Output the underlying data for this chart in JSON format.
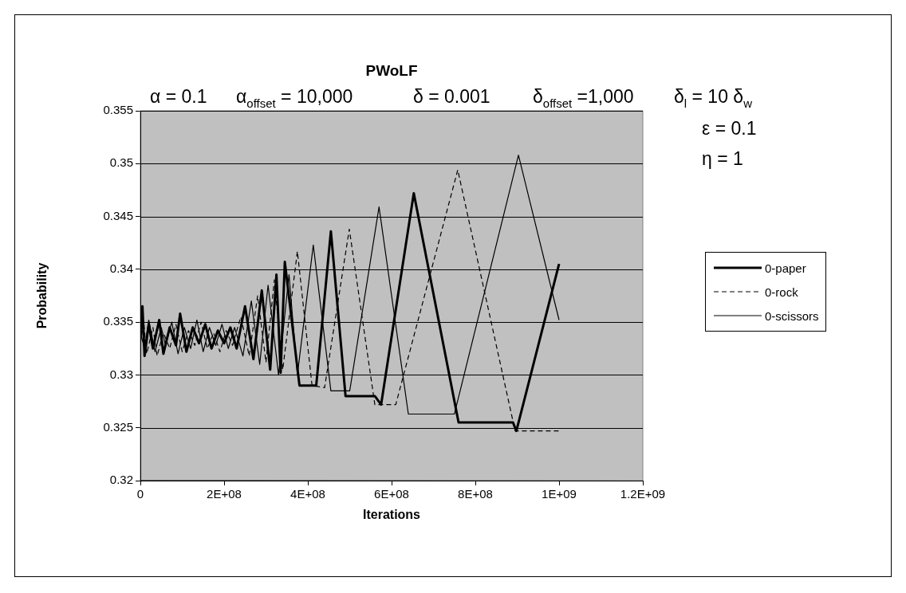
{
  "chart_data": {
    "type": "line",
    "title": "PWoLF",
    "xlabel": "Iterations",
    "ylabel": "Probability",
    "annotations": [
      "α = 0.1",
      "α$_{offset}$ = 10,000",
      "δ = 0.001",
      "δ$_{offset}$ =1,000",
      "δ$_{l}$ = 10 δ$_{w}$",
      "ε = 0.1",
      "η = 1"
    ],
    "xlim": [
      0,
      1200000000.0
    ],
    "xticks": [
      0,
      {
        "value": 200000000.0,
        "label": "2E+08"
      },
      {
        "value": 400000000.0,
        "label": "4E+08"
      },
      {
        "value": 600000000.0,
        "label": "6E+08"
      },
      {
        "value": 800000000.0,
        "label": "8E+08"
      },
      {
        "value": 1000000000.0,
        "label": "1E+09"
      },
      {
        "value": 1200000000.0,
        "label": "1.2E+09"
      }
    ],
    "ylim": [
      0.32,
      0.355
    ],
    "yticks": [
      0.32,
      0.325,
      0.33,
      0.335,
      0.34,
      0.345,
      0.35,
      0.355
    ],
    "grid": "y",
    "legend": "right",
    "marker": "none",
    "series": [
      {
        "name": "0-paper",
        "color": "#000000",
        "line_style": "solid",
        "x": [
          0,
          5000000.0,
          10000000.0,
          20000000.0,
          30000000.0,
          45000000.0,
          55000000.0,
          70000000.0,
          85000000.0,
          95000000.0,
          110000000.0,
          125000000.0,
          140000000.0,
          155000000.0,
          170000000.0,
          185000000.0,
          200000000.0,
          215000000.0,
          230000000.0,
          250000000.0,
          270000000.0,
          290000000.0,
          310000000.0,
          325000000.0,
          335000000.0,
          345000000.0,
          380000000.0,
          420000000.0,
          455000000.0,
          490000000.0,
          560000000.0,
          575000000.0,
          653000000.0,
          760000000.0,
          890000000.0,
          898000000.0,
          1000000000.0
        ],
        "values": [
          0.3335,
          0.3365,
          0.3318,
          0.3348,
          0.3325,
          0.3352,
          0.332,
          0.3345,
          0.3328,
          0.3358,
          0.3322,
          0.3345,
          0.333,
          0.3348,
          0.3325,
          0.3342,
          0.333,
          0.3345,
          0.3325,
          0.3365,
          0.3315,
          0.338,
          0.3305,
          0.3395,
          0.3302,
          0.3407,
          0.329,
          0.329,
          0.3436,
          0.328,
          0.328,
          0.3272,
          0.3472,
          0.3255,
          0.3255,
          0.3247,
          0.3405
        ]
      },
      {
        "name": "0-rock",
        "color": "#000000",
        "line_style": "dashed",
        "x": [
          0,
          8000000.0,
          15000000.0,
          30000000.0,
          40000000.0,
          55000000.0,
          70000000.0,
          85000000.0,
          100000000.0,
          115000000.0,
          130000000.0,
          145000000.0,
          160000000.0,
          175000000.0,
          190000000.0,
          205000000.0,
          220000000.0,
          240000000.0,
          260000000.0,
          280000000.0,
          300000000.0,
          320000000.0,
          340000000.0,
          375000000.0,
          410000000.0,
          440000000.0,
          499000000.0,
          560000000.0,
          610000000.0,
          758000000.0,
          895000000.0,
          1000000000.0
        ],
        "values": [
          0.333,
          0.335,
          0.332,
          0.3345,
          0.3318,
          0.334,
          0.3325,
          0.3348,
          0.3322,
          0.3342,
          0.3328,
          0.335,
          0.3325,
          0.334,
          0.3322,
          0.3342,
          0.3328,
          0.3355,
          0.3318,
          0.3375,
          0.3312,
          0.339,
          0.3305,
          0.3417,
          0.329,
          0.3288,
          0.3438,
          0.3272,
          0.3272,
          0.3494,
          0.3247,
          0.3247
        ]
      },
      {
        "name": "0-scissors",
        "color": "#000000",
        "line_style": "solid",
        "x": [
          0,
          10000000.0,
          20000000.0,
          35000000.0,
          50000000.0,
          60000000.0,
          75000000.0,
          90000000.0,
          105000000.0,
          120000000.0,
          135000000.0,
          150000000.0,
          165000000.0,
          180000000.0,
          195000000.0,
          210000000.0,
          225000000.0,
          245000000.0,
          265000000.0,
          285000000.0,
          305000000.0,
          330000000.0,
          355000000.0,
          375000000.0,
          413000000.0,
          455000000.0,
          500000000.0,
          570000000.0,
          640000000.0,
          750000000.0,
          903000000.0,
          1000000000.0
        ],
        "values": [
          0.334,
          0.3325,
          0.3352,
          0.3322,
          0.3345,
          0.3328,
          0.335,
          0.332,
          0.3345,
          0.3325,
          0.3352,
          0.3322,
          0.3345,
          0.3328,
          0.3348,
          0.3325,
          0.3345,
          0.3318,
          0.337,
          0.331,
          0.3385,
          0.33,
          0.3395,
          0.33,
          0.3423,
          0.3285,
          0.3285,
          0.3459,
          0.3263,
          0.3263,
          0.3508,
          0.3352
        ]
      }
    ]
  }
}
